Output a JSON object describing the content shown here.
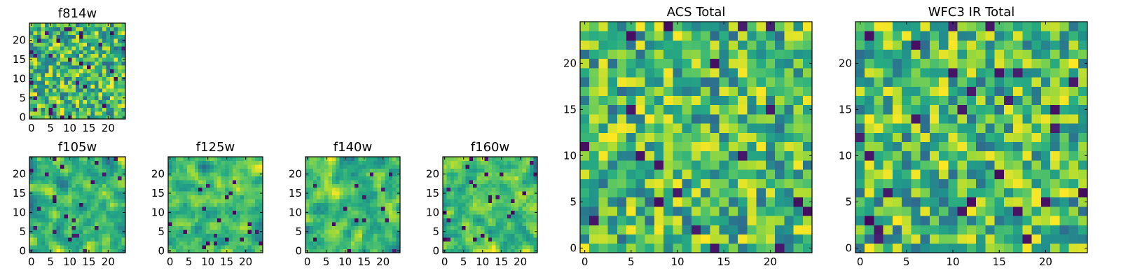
{
  "chart_data": [
    {
      "type": "heatmap",
      "title": "f814w",
      "x_ticks": [
        0,
        5,
        10,
        15,
        20
      ],
      "y_ticks": [
        0,
        5,
        10,
        15,
        20
      ],
      "xlim": [
        -0.5,
        24.5
      ],
      "ylim": [
        -0.5,
        24.5
      ],
      "grid_size": 25,
      "seed": 11,
      "smooth": 0,
      "colormap": "viridis"
    },
    {
      "type": "heatmap",
      "title": "f105w",
      "x_ticks": [
        0,
        5,
        10,
        15,
        20
      ],
      "y_ticks": [
        0,
        5,
        10,
        15,
        20
      ],
      "xlim": [
        -0.5,
        24.5
      ],
      "ylim": [
        -0.5,
        24.5
      ],
      "grid_size": 25,
      "seed": 23,
      "smooth": 1,
      "colormap": "viridis"
    },
    {
      "type": "heatmap",
      "title": "f125w",
      "x_ticks": [
        0,
        5,
        10,
        15,
        20
      ],
      "y_ticks": [
        0,
        5,
        10,
        15,
        20
      ],
      "xlim": [
        -0.5,
        24.5
      ],
      "ylim": [
        -0.5,
        24.5
      ],
      "grid_size": 25,
      "seed": 37,
      "smooth": 1,
      "colormap": "viridis"
    },
    {
      "type": "heatmap",
      "title": "f140w",
      "x_ticks": [
        0,
        5,
        10,
        15,
        20
      ],
      "y_ticks": [
        0,
        5,
        10,
        15,
        20
      ],
      "xlim": [
        -0.5,
        24.5
      ],
      "ylim": [
        -0.5,
        24.5
      ],
      "grid_size": 25,
      "seed": 41,
      "smooth": 1,
      "colormap": "viridis"
    },
    {
      "type": "heatmap",
      "title": "f160w",
      "x_ticks": [
        0,
        5,
        10,
        15,
        20
      ],
      "y_ticks": [
        0,
        5,
        10,
        15,
        20
      ],
      "xlim": [
        -0.5,
        24.5
      ],
      "ylim": [
        -0.5,
        24.5
      ],
      "grid_size": 25,
      "seed": 53,
      "smooth": 1,
      "colormap": "viridis"
    },
    {
      "type": "heatmap",
      "title": "ACS Total",
      "x_ticks": [
        0,
        5,
        10,
        15,
        20
      ],
      "y_ticks": [
        0,
        5,
        10,
        15,
        20
      ],
      "xlim": [
        -0.5,
        24.5
      ],
      "ylim": [
        -0.5,
        24.5
      ],
      "grid_size": 25,
      "seed": 67,
      "smooth": 0,
      "colormap": "viridis"
    },
    {
      "type": "heatmap",
      "title": "WFC3 IR Total",
      "x_ticks": [
        0,
        5,
        10,
        15,
        20
      ],
      "y_ticks": [
        0,
        5,
        10,
        15,
        20
      ],
      "xlim": [
        -0.5,
        24.5
      ],
      "ylim": [
        -0.5,
        24.5
      ],
      "grid_size": 25,
      "seed": 79,
      "smooth": 0,
      "colormap": "viridis"
    }
  ]
}
